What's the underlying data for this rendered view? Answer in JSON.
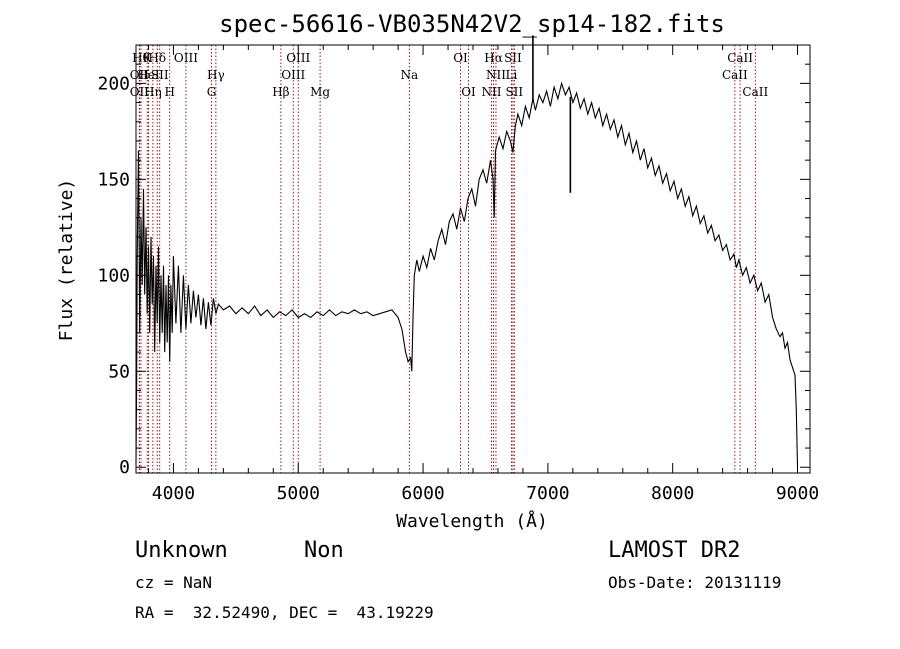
{
  "chart_data": {
    "type": "line",
    "title": "spec-56616-VB035N42V2_sp14-182.fits",
    "xlabel": "Wavelength (Å)",
    "ylabel": "Flux (relative)",
    "xlim": [
      3700,
      9100
    ],
    "ylim": [
      -3,
      220
    ],
    "xticks": [
      4000,
      5000,
      6000,
      7000,
      8000,
      9000
    ],
    "yticks": [
      0,
      50,
      100,
      150,
      200
    ],
    "x_minor_step": 200,
    "y_minor_step": 10,
    "grid": false,
    "line_color": "#000000",
    "marker_color": "#8b0000",
    "series": [
      {
        "points": [
          [
            3700,
            2
          ],
          [
            3705,
            40
          ],
          [
            3710,
            110
          ],
          [
            3715,
            140
          ],
          [
            3720,
            165
          ],
          [
            3725,
            120
          ],
          [
            3730,
            70
          ],
          [
            3740,
            130
          ],
          [
            3750,
            95
          ],
          [
            3760,
            145
          ],
          [
            3770,
            90
          ],
          [
            3780,
            125
          ],
          [
            3790,
            80
          ],
          [
            3800,
            115
          ],
          [
            3810,
            70
          ],
          [
            3820,
            120
          ],
          [
            3830,
            85
          ],
          [
            3840,
            110
          ],
          [
            3850,
            60
          ],
          [
            3860,
            105
          ],
          [
            3870,
            75
          ],
          [
            3880,
            115
          ],
          [
            3890,
            65
          ],
          [
            3900,
            100
          ],
          [
            3910,
            70
          ],
          [
            3920,
            105
          ],
          [
            3930,
            60
          ],
          [
            3940,
            95
          ],
          [
            3950,
            65
          ],
          [
            3960,
            100
          ],
          [
            3970,
            55
          ],
          [
            3980,
            95
          ],
          [
            3990,
            70
          ],
          [
            4000,
            110
          ],
          [
            4020,
            75
          ],
          [
            4040,
            105
          ],
          [
            4060,
            70
          ],
          [
            4080,
            100
          ],
          [
            4100,
            72
          ],
          [
            4120,
            95
          ],
          [
            4140,
            75
          ],
          [
            4160,
            92
          ],
          [
            4180,
            78
          ],
          [
            4200,
            90
          ],
          [
            4220,
            74
          ],
          [
            4240,
            88
          ],
          [
            4260,
            72
          ],
          [
            4280,
            86
          ],
          [
            4300,
            74
          ],
          [
            4320,
            88
          ],
          [
            4340,
            80
          ],
          [
            4360,
            85
          ],
          [
            4400,
            82
          ],
          [
            4450,
            84
          ],
          [
            4500,
            80
          ],
          [
            4550,
            83
          ],
          [
            4600,
            80
          ],
          [
            4650,
            84
          ],
          [
            4700,
            79
          ],
          [
            4750,
            82
          ],
          [
            4800,
            78
          ],
          [
            4850,
            81
          ],
          [
            4900,
            79
          ],
          [
            4950,
            82
          ],
          [
            5000,
            78
          ],
          [
            5050,
            80
          ],
          [
            5100,
            78
          ],
          [
            5150,
            81
          ],
          [
            5200,
            79
          ],
          [
            5250,
            82
          ],
          [
            5300,
            79
          ],
          [
            5350,
            81
          ],
          [
            5400,
            80
          ],
          [
            5450,
            82
          ],
          [
            5500,
            80
          ],
          [
            5550,
            81
          ],
          [
            5600,
            79
          ],
          [
            5650,
            80
          ],
          [
            5700,
            81
          ],
          [
            5750,
            82
          ],
          [
            5800,
            78
          ],
          [
            5830,
            72
          ],
          [
            5860,
            60
          ],
          [
            5880,
            55
          ],
          [
            5900,
            57
          ],
          [
            5910,
            50
          ],
          [
            5920,
            80
          ],
          [
            5930,
            100
          ],
          [
            5950,
            108
          ],
          [
            5970,
            102
          ],
          [
            6000,
            110
          ],
          [
            6030,
            104
          ],
          [
            6060,
            114
          ],
          [
            6090,
            108
          ],
          [
            6120,
            118
          ],
          [
            6150,
            124
          ],
          [
            6180,
            116
          ],
          [
            6210,
            128
          ],
          [
            6240,
            132
          ],
          [
            6270,
            124
          ],
          [
            6300,
            135
          ],
          [
            6330,
            128
          ],
          [
            6360,
            140
          ],
          [
            6390,
            145
          ],
          [
            6420,
            136
          ],
          [
            6450,
            150
          ],
          [
            6480,
            155
          ],
          [
            6510,
            148
          ],
          [
            6540,
            160
          ],
          [
            6560,
            150
          ],
          [
            6570,
            130
          ],
          [
            6580,
            165
          ],
          [
            6610,
            172
          ],
          [
            6640,
            166
          ],
          [
            6670,
            175
          ],
          [
            6700,
            170
          ],
          [
            6720,
            164
          ],
          [
            6740,
            178
          ],
          [
            6760,
            184
          ],
          [
            6790,
            178
          ],
          [
            6820,
            188
          ],
          [
            6850,
            182
          ],
          [
            6880,
            192
          ],
          [
            6900,
            186
          ],
          [
            6930,
            194
          ],
          [
            6960,
            190
          ],
          [
            6990,
            196
          ],
          [
            7020,
            188
          ],
          [
            7050,
            198
          ],
          [
            7080,
            192
          ],
          [
            7110,
            200
          ],
          [
            7140,
            194
          ],
          [
            7170,
            198
          ],
          [
            7200,
            190
          ],
          [
            7230,
            195
          ],
          [
            7260,
            187
          ],
          [
            7290,
            192
          ],
          [
            7320,
            184
          ],
          [
            7350,
            190
          ],
          [
            7380,
            182
          ],
          [
            7410,
            187
          ],
          [
            7440,
            178
          ],
          [
            7470,
            184
          ],
          [
            7500,
            176
          ],
          [
            7530,
            181
          ],
          [
            7560,
            172
          ],
          [
            7590,
            178
          ],
          [
            7620,
            168
          ],
          [
            7650,
            174
          ],
          [
            7680,
            164
          ],
          [
            7710,
            170
          ],
          [
            7740,
            160
          ],
          [
            7770,
            166
          ],
          [
            7800,
            156
          ],
          [
            7830,
            161
          ],
          [
            7860,
            152
          ],
          [
            7890,
            157
          ],
          [
            7920,
            148
          ],
          [
            7950,
            153
          ],
          [
            7980,
            144
          ],
          [
            8010,
            149
          ],
          [
            8040,
            140
          ],
          [
            8070,
            145
          ],
          [
            8100,
            136
          ],
          [
            8130,
            141
          ],
          [
            8160,
            131
          ],
          [
            8190,
            136
          ],
          [
            8220,
            127
          ],
          [
            8250,
            131
          ],
          [
            8280,
            122
          ],
          [
            8310,
            126
          ],
          [
            8340,
            118
          ],
          [
            8370,
            121
          ],
          [
            8400,
            113
          ],
          [
            8430,
            116
          ],
          [
            8460,
            108
          ],
          [
            8490,
            111
          ],
          [
            8510,
            104
          ],
          [
            8530,
            108
          ],
          [
            8560,
            100
          ],
          [
            8590,
            104
          ],
          [
            8620,
            96
          ],
          [
            8650,
            100
          ],
          [
            8680,
            92
          ],
          [
            8710,
            96
          ],
          [
            8740,
            86
          ],
          [
            8770,
            90
          ],
          [
            8800,
            78
          ],
          [
            8830,
            72
          ],
          [
            8860,
            68
          ],
          [
            8880,
            70
          ],
          [
            8900,
            62
          ],
          [
            8920,
            65
          ],
          [
            8940,
            56
          ],
          [
            8960,
            52
          ],
          [
            8980,
            48
          ],
          [
            8990,
            30
          ],
          [
            9000,
            0
          ]
        ]
      }
    ],
    "spikes": [
      {
        "x": 6880,
        "y_from": 190,
        "y_to": 225
      },
      {
        "x": 7180,
        "y_from": 193,
        "y_to": 143
      }
    ],
    "markers_row1": [
      {
        "x": 3740,
        "label": "Hθ"
      },
      {
        "x": 3790,
        "label": "K"
      },
      {
        "x": 3870,
        "label": "Hδ"
      },
      {
        "x": 4100,
        "label": "OIII"
      },
      {
        "x": 5000,
        "label": "OIII"
      },
      {
        "x": 6300,
        "label": "OI"
      },
      {
        "x": 6565,
        "label": "Hα"
      },
      {
        "x": 6720,
        "label": "SII"
      },
      {
        "x": 8540,
        "label": "CaII"
      }
    ],
    "markers_row2": [
      {
        "x": 3727,
        "label": "OII"
      },
      {
        "x": 3800,
        "label": "HeI"
      },
      {
        "x": 3890,
        "label": "SII"
      },
      {
        "x": 4340,
        "label": "Hγ"
      },
      {
        "x": 4960,
        "label": "OIII"
      },
      {
        "x": 5890,
        "label": "Na"
      },
      {
        "x": 6584,
        "label": "NII"
      },
      {
        "x": 6708,
        "label": "Li"
      },
      {
        "x": 8498,
        "label": "CaII"
      }
    ],
    "markers_row3": [
      {
        "x": 3727,
        "label": "OII"
      },
      {
        "x": 3835,
        "label": "Hη"
      },
      {
        "x": 3970,
        "label": "H"
      },
      {
        "x": 4305,
        "label": "G"
      },
      {
        "x": 4861,
        "label": "Hβ"
      },
      {
        "x": 5175,
        "label": "Mg"
      },
      {
        "x": 6364,
        "label": "OI"
      },
      {
        "x": 6548,
        "label": "NII"
      },
      {
        "x": 6731,
        "label": "SII"
      },
      {
        "x": 8662,
        "label": "CaII"
      }
    ]
  },
  "info": {
    "class_label": "Unknown",
    "subclass_label": "Non",
    "survey_label": "LAMOST DR2",
    "cz_text": "cz = NaN",
    "obs_date_text": "Obs-Date: 20131119",
    "coords_text": "RA =  32.52490, DEC =  43.19229"
  }
}
